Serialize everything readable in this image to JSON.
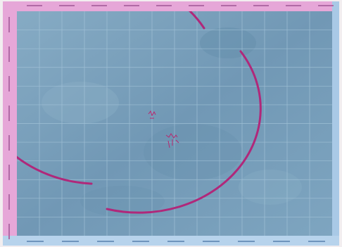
{
  "map": {
    "colors": {
      "border_top_left": "#e6a7d8",
      "border_bottom_right": "#b7d3ec",
      "map_fill": "#7ba3bf",
      "grid_lines": "#a9c8dc",
      "circle_annotation": "#b0287a"
    },
    "grid_lines": "on",
    "annotation": "magenta circle"
  }
}
